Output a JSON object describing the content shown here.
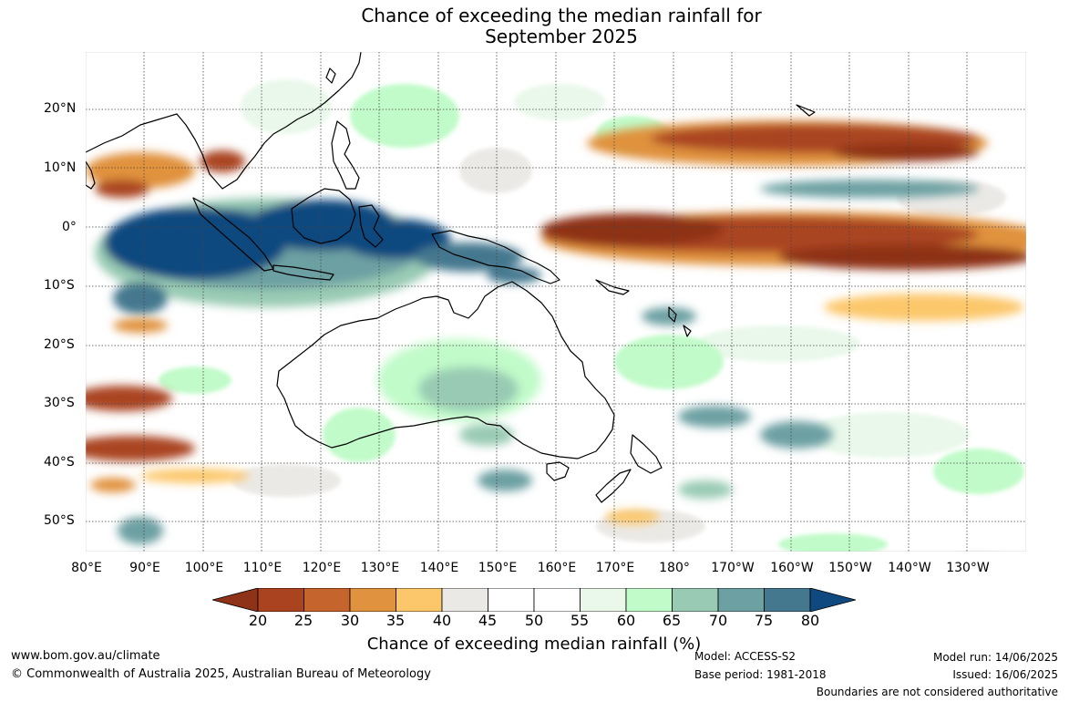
{
  "title_line1": "Chance of exceeding the median rainfall for",
  "title_line2": "September 2025",
  "lat_labels": [
    "20°N",
    "10°N",
    "0°",
    "10°S",
    "20°S",
    "30°S",
    "40°S",
    "50°S"
  ],
  "lon_labels": [
    "80°E",
    "90°E",
    "100°E",
    "110°E",
    "120°E",
    "130°E",
    "140°E",
    "150°E",
    "160°E",
    "170°E",
    "180°",
    "170°W",
    "160°W",
    "150°W",
    "140°W",
    "130°W"
  ],
  "colorbar": {
    "labels": [
      "20",
      "25",
      "30",
      "35",
      "40",
      "45",
      "50",
      "55",
      "60",
      "65",
      "70",
      "75",
      "80"
    ],
    "colors": [
      "#8e3317",
      "#aa4420",
      "#c5642c",
      "#e0923e",
      "#fcc76b",
      "#ebe9e6",
      "#ffffff",
      "#ffffff",
      "#e9f8ea",
      "#c1fbc9",
      "#99cbb4",
      "#6da0a3",
      "#44788f",
      "#10497f"
    ],
    "title": "Chance of exceeding median rainfall (%)"
  },
  "footer": {
    "website": "www.bom.gov.au/climate",
    "copyright": "© Commonwealth of Australia 2025, Australian Bureau of Meteorology",
    "model": "Model: ACCESS-S2",
    "base_period": "Base period: 1981-2018",
    "model_run": "Model run: 14/06/2025",
    "issued": "Issued: 16/06/2025",
    "disclaimer": "Boundaries are not considered authoritative"
  }
}
